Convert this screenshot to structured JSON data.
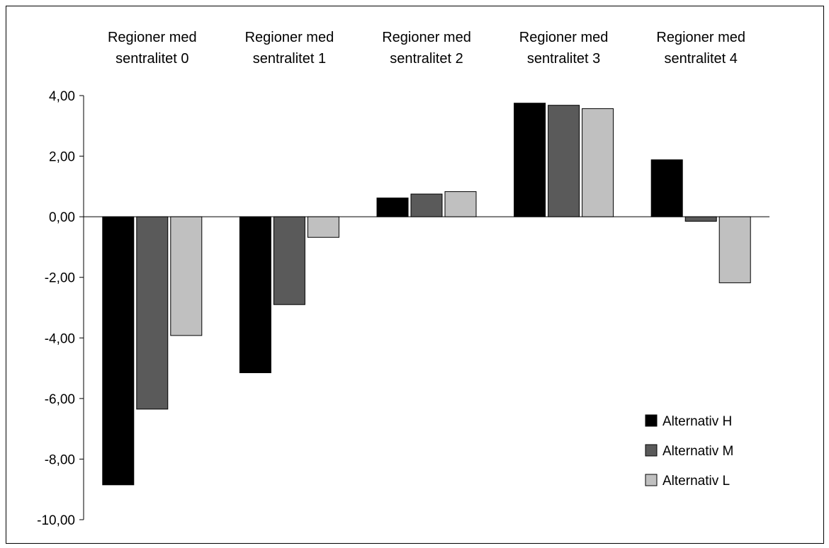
{
  "chart_data": {
    "type": "bar",
    "categories": [
      [
        "Regioner med",
        "sentralitet 0"
      ],
      [
        "Regioner med",
        "sentralitet 1"
      ],
      [
        "Regioner med",
        "sentralitet 2"
      ],
      [
        "Regioner med",
        "sentralitet 3"
      ],
      [
        "Regioner med",
        "sentralitet 4"
      ]
    ],
    "series": [
      {
        "name": "Alternativ H",
        "color": "#000000",
        "values": [
          -8.85,
          -5.15,
          0.62,
          3.75,
          1.88
        ]
      },
      {
        "name": "Alternativ M",
        "color": "#5a5a5a",
        "values": [
          -6.35,
          -2.9,
          0.75,
          3.68,
          -0.15
        ]
      },
      {
        "name": "Alternativ L",
        "color": "#c0c0c0",
        "values": [
          -3.92,
          -0.68,
          0.83,
          3.57,
          -2.18
        ]
      }
    ],
    "ylim": [
      -10,
      4
    ],
    "yticks": [
      4,
      2,
      0,
      -2,
      -4,
      -6,
      -8,
      -10
    ],
    "ytick_labels": [
      "4,00",
      "2,00",
      "0,00",
      "-2,00",
      "-4,00",
      "-6,00",
      "-8,00",
      "-10,00"
    ],
    "grid": false,
    "legend_position": "bottom-right",
    "title": "",
    "xlabel": "",
    "ylabel": ""
  }
}
